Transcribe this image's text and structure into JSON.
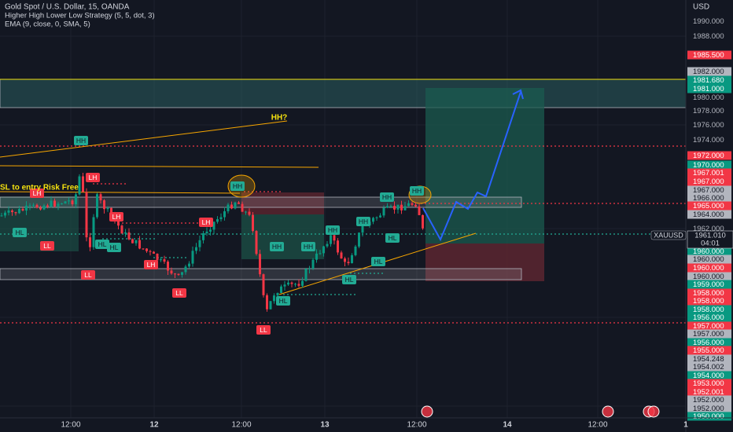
{
  "header": {
    "symbol": "Gold Spot / U.S. Dollar, 15, OANDA",
    "indicators": [
      "Higher High Lower Low Strategy (5, 5, dot, 3)",
      "EMA (9, close, 0, SMA, 5)"
    ],
    "currency": "USD"
  },
  "price_axis": [
    "1990.000",
    "1988.000",
    "1985.500",
    "1982.000",
    "1981.680",
    "1981.000",
    "1980.000",
    "1978.000",
    "1976.000",
    "1974.000",
    "1972.000",
    "1970.000",
    "1967.001",
    "1967.000",
    "1967.000",
    "1966.000",
    "1965.000",
    "1964.000",
    "1962.000",
    "1960.000",
    "1960.000",
    "1960.000",
    "1960.000",
    "1959.000",
    "1958.000",
    "1958.000",
    "1958.000",
    "1956.000",
    "1957.000",
    "1957.000",
    "1956.000",
    "1955.000",
    "1954.248",
    "1954.002",
    "1954.000",
    "1953.000",
    "1952.001",
    "1952.000",
    "1952.000",
    "1950.000"
  ],
  "symbol_badge": {
    "ticker": "XAUUSD",
    "price": "1961.010",
    "countdown": "04:01"
  },
  "time_axis": [
    "12:00",
    "12",
    "12:00",
    "13",
    "12:00",
    "14",
    "12:00",
    "1"
  ],
  "annotations": [
    "HH",
    "LH",
    "LH",
    "HL",
    "LL",
    "LL",
    "LH",
    "HL",
    "HL",
    "LH",
    "LH",
    "LL",
    "HH",
    "HH",
    "HH",
    "HH",
    "HH",
    "HH",
    "HH",
    "HL",
    "LL",
    "HL",
    "HL",
    "HL"
  ],
  "notes": [
    "HH?",
    "SL to entry Risk Free"
  ]
}
